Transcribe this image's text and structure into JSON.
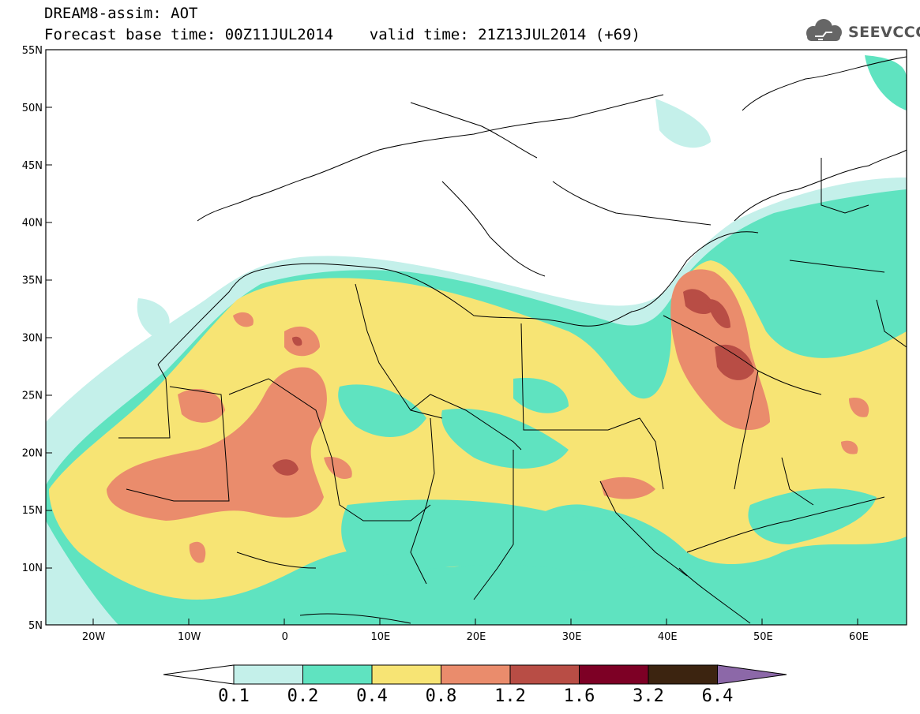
{
  "header": {
    "title_line1": "DREAM8-assim: AOT",
    "title_line2": "Forecast base time: 00Z11JUL2014    valid time: 21Z13JUL2014 (+69)"
  },
  "logo": {
    "text": "SEEVCCC",
    "icon": "cloud-icon"
  },
  "map": {
    "lon_range": [
      -25,
      65
    ],
    "lat_range": [
      5,
      55
    ],
    "y_ticks": [
      "55N",
      "50N",
      "45N",
      "40N",
      "35N",
      "30N",
      "25N",
      "20N",
      "15N",
      "10N",
      "5N"
    ],
    "x_ticks": [
      "20W",
      "10W",
      "0",
      "10E",
      "20E",
      "30E",
      "40E",
      "50E",
      "60E"
    ]
  },
  "colorbar": {
    "labels": [
      "0.1",
      "0.2",
      "0.4",
      "0.8",
      "1.2",
      "1.6",
      "3.2",
      "6.4"
    ],
    "colors": [
      "#c4f0ea",
      "#5fe3c0",
      "#f7e474",
      "#ea8c6c",
      "#b84d45",
      "#7d0025",
      "#3c2410",
      "#8c68a8"
    ],
    "below_color": "#ffffff"
  },
  "colors": {
    "c1": "#c4f0ea",
    "c2": "#5fe3c0",
    "c3": "#f7e474",
    "c4": "#ea8c6c",
    "c5": "#b84d45"
  }
}
